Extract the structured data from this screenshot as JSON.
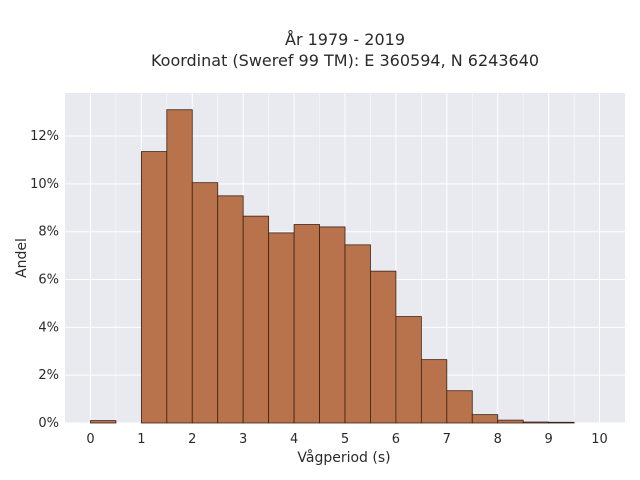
{
  "chart_data": {
    "type": "bar",
    "title_line1": "År 1979 - 2019",
    "title_line2": "Koordinat (Sweref 99 TM): E 360594, N 6243640",
    "xlabel": "Vågperiod (s)",
    "ylabel": "Andel",
    "xlim": [
      -0.5,
      10.5
    ],
    "ylim": [
      0,
      13.8
    ],
    "x_ticks": [
      0,
      1,
      2,
      3,
      4,
      5,
      6,
      7,
      8,
      9,
      10
    ],
    "y_ticks": [
      0,
      2,
      4,
      6,
      8,
      10,
      12
    ],
    "y_tick_labels": [
      "0%",
      "2%",
      "4%",
      "6%",
      "8%",
      "10%",
      "12%"
    ],
    "bin_width": 0.5,
    "bin_starts": [
      0,
      0.5,
      1.0,
      1.5,
      2.0,
      2.5,
      3.0,
      3.5,
      4.0,
      4.5,
      5.0,
      5.5,
      6.0,
      6.5,
      7.0,
      7.5,
      8.0,
      8.5,
      9.0,
      9.5
    ],
    "values": [
      0.1,
      0,
      11.35,
      13.1,
      10.05,
      9.5,
      8.65,
      7.95,
      8.3,
      8.2,
      7.45,
      6.35,
      4.45,
      2.65,
      1.35,
      0.35,
      0.12,
      0.04,
      0.03,
      0
    ],
    "bar_color": "#b8734c",
    "bar_edge_color": "#3d2114",
    "background": "#e9e9f0",
    "grid": true,
    "grid_color": "#ffffff"
  }
}
